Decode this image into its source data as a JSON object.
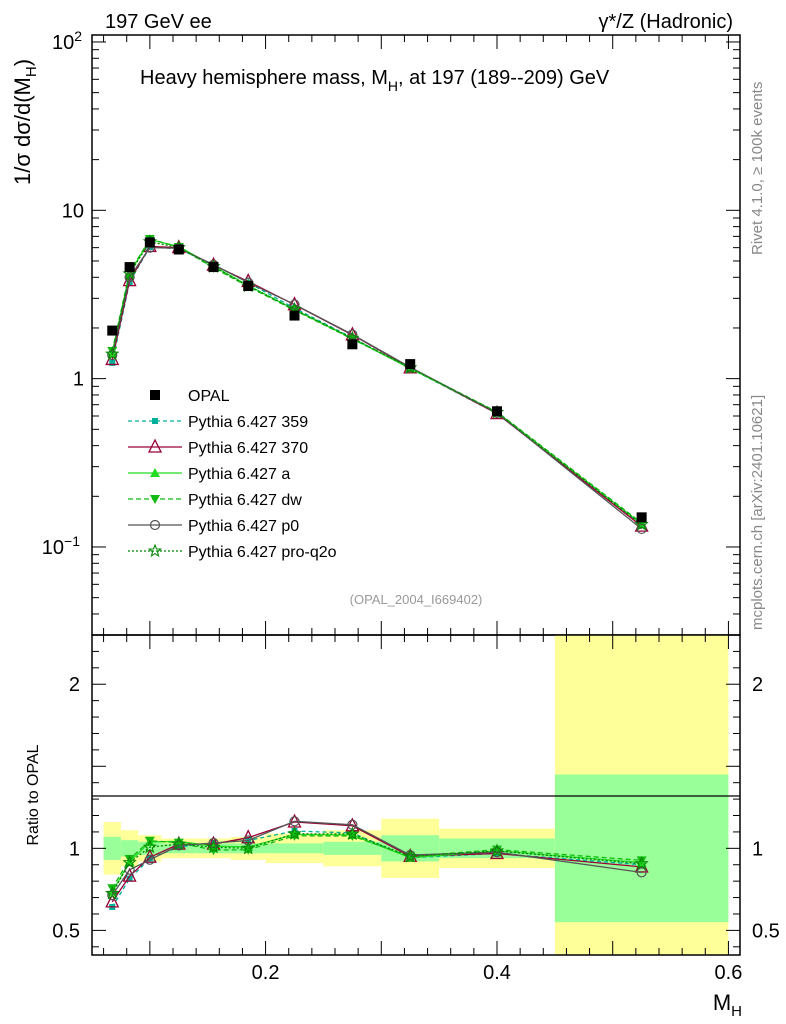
{
  "header": {
    "left": "197 GeV ee",
    "right": "γ*/Z (Hadronic)"
  },
  "side": {
    "rivet": "Rivet 4.1.0, ≥ 100k events",
    "mcplots": "mcplots.cern.ch [arXiv:2401.10621]"
  },
  "chart_data": {
    "type": "line",
    "title": "Heavy hemisphere mass, M_H, at 197 (189--209) GeV",
    "ref_id": "(OPAL_2004_I669402)",
    "xlabel": "M_H",
    "ylabel": "1/σ dσ/d(M_H)",
    "ratio_ylabel": "Ratio to OPAL",
    "xlim": [
      0.05,
      0.61
    ],
    "ylim": [
      0.03,
      110
    ],
    "yscale": "log",
    "ratio_ylim": [
      0.35,
      2.3
    ],
    "x_ticks": [
      "0.2",
      "0.4",
      "0.6"
    ],
    "y_ticks": [
      "10^-1",
      "1",
      "10",
      "10^2"
    ],
    "ratio_ticks": [
      "0.5",
      "1",
      "2"
    ],
    "bins": [
      {
        "lo": 0.06,
        "hi": 0.075
      },
      {
        "lo": 0.075,
        "hi": 0.09
      },
      {
        "lo": 0.09,
        "hi": 0.11
      },
      {
        "lo": 0.11,
        "hi": 0.14
      },
      {
        "lo": 0.14,
        "hi": 0.17
      },
      {
        "lo": 0.17,
        "hi": 0.2
      },
      {
        "lo": 0.2,
        "hi": 0.25
      },
      {
        "lo": 0.25,
        "hi": 0.3
      },
      {
        "lo": 0.3,
        "hi": 0.35
      },
      {
        "lo": 0.35,
        "hi": 0.45
      },
      {
        "lo": 0.45,
        "hi": 0.6
      }
    ],
    "x": [
      0.0675,
      0.0825,
      0.1,
      0.125,
      0.155,
      0.185,
      0.225,
      0.275,
      0.325,
      0.4,
      0.525
    ],
    "data_label": "OPAL",
    "data": [
      1.93,
      4.6,
      6.45,
      5.85,
      4.6,
      3.55,
      2.37,
      1.6,
      1.22,
      0.64,
      0.15
    ],
    "band_green": [
      0.07,
      0.05,
      0.04,
      0.03,
      0.03,
      0.03,
      0.03,
      0.04,
      0.08,
      0.06,
      0.45
    ],
    "band_yellow": [
      0.16,
      0.11,
      0.08,
      0.06,
      0.06,
      0.07,
      0.09,
      0.11,
      0.18,
      0.12,
      1.3
    ],
    "series": [
      {
        "name": "Pythia 6.427 359",
        "color": "#00b09a",
        "dash": "4,3",
        "marker": "square-small",
        "values": [
          1.24,
          3.75,
          6.05,
          5.9,
          4.75,
          3.72,
          2.62,
          1.75,
          1.15,
          0.62,
          0.135
        ]
      },
      {
        "name": "Pythia 6.427 370",
        "color": "#990033",
        "dash": "",
        "marker": "triangle-open",
        "values": [
          1.3,
          3.82,
          6.1,
          6.0,
          4.72,
          3.78,
          2.75,
          1.82,
          1.16,
          0.62,
          0.133
        ]
      },
      {
        "name": "Pythia 6.427 a",
        "color": "#22dd22",
        "dash": "",
        "marker": "triangle-filled",
        "values": [
          1.42,
          4.22,
          6.7,
          6.1,
          4.66,
          3.58,
          2.57,
          1.73,
          1.15,
          0.63,
          0.137
        ]
      },
      {
        "name": "Pythia 6.427 dw",
        "color": "#11bb11",
        "dash": "5,3",
        "marker": "triangle-down",
        "values": [
          1.46,
          4.3,
          6.75,
          6.05,
          4.55,
          3.52,
          2.55,
          1.72,
          1.16,
          0.635,
          0.139
        ]
      },
      {
        "name": "Pythia 6.427 p0",
        "color": "#555555",
        "dash": "",
        "marker": "circle-open",
        "values": [
          1.38,
          4.0,
          6.0,
          5.95,
          4.75,
          3.72,
          2.76,
          1.83,
          1.17,
          0.625,
          0.128
        ]
      },
      {
        "name": "Pythia 6.427 pro-q2o",
        "color": "#008800",
        "dash": "2,2",
        "marker": "star-open",
        "values": [
          1.4,
          4.2,
          6.5,
          6.0,
          4.63,
          3.55,
          2.58,
          1.74,
          1.16,
          0.63,
          0.136
        ]
      }
    ]
  }
}
